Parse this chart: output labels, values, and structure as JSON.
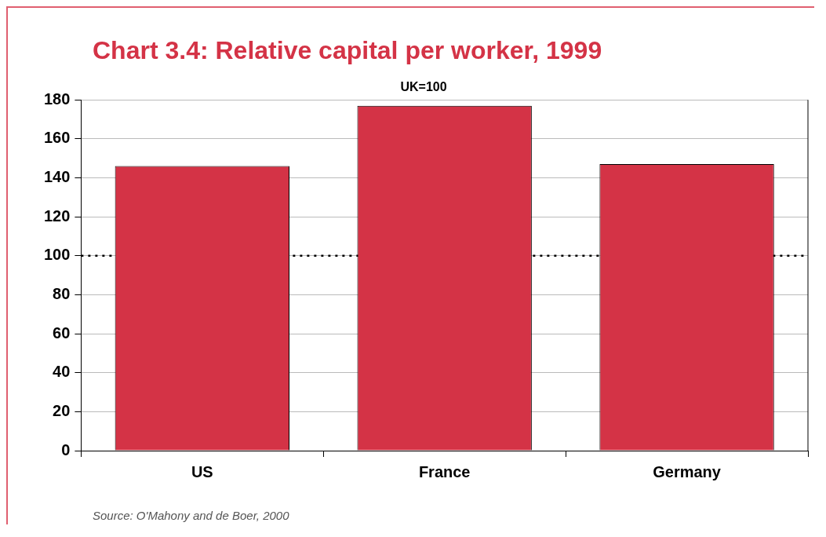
{
  "chart_data": {
    "type": "bar",
    "title": "Chart 3.4: Relative capital per worker, 1999",
    "subtitle": "UK=100",
    "categories": [
      "US",
      "France",
      "Germany"
    ],
    "values": [
      146,
      177,
      147
    ],
    "color": "#d43346",
    "ylim": [
      0,
      180
    ],
    "yticks": [
      0,
      20,
      40,
      60,
      80,
      100,
      120,
      140,
      160,
      180
    ],
    "grid": "y",
    "legend": false,
    "ref_lines": [
      {
        "axis": "y",
        "value": 100,
        "color": "#000000",
        "line_style": "dotted"
      }
    ],
    "annotations": [
      "Source: O'Mahony and de Boer, 2000"
    ]
  }
}
